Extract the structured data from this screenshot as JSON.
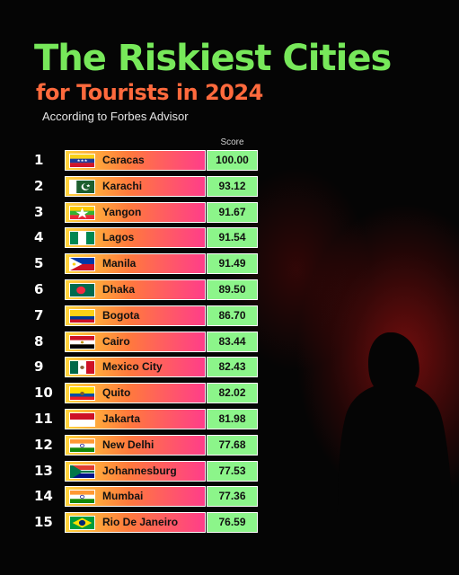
{
  "header": {
    "title": "The Riskiest Cities",
    "subtitle": "for Tourists in 2024",
    "source": "According to Forbes Advisor"
  },
  "colors": {
    "title": "#77e85a",
    "subtitle": "#ff6a3d",
    "score_cell": "#8cf58a",
    "city_gradient": [
      "#ffd43b",
      "#ff7a3c",
      "#ff3d8a"
    ]
  },
  "chart_data": {
    "type": "table",
    "title": "The Riskiest Cities for Tourists in 2024",
    "columns": [
      "",
      "",
      "Score"
    ],
    "score_label": "Score",
    "rows": [
      {
        "rank": "1",
        "city": "Caracas",
        "score": "100.00",
        "flag": "venezuela-flag"
      },
      {
        "rank": "2",
        "city": "Karachi",
        "score": "93.12",
        "flag": "pakistan-flag"
      },
      {
        "rank": "3",
        "city": "Yangon",
        "score": "91.67",
        "flag": "myanmar-flag"
      },
      {
        "rank": "4",
        "city": "Lagos",
        "score": "91.54",
        "flag": "nigeria-flag"
      },
      {
        "rank": "5",
        "city": "Manila",
        "score": "91.49",
        "flag": "philippines-flag"
      },
      {
        "rank": "6",
        "city": "Dhaka",
        "score": "89.50",
        "flag": "bangladesh-flag"
      },
      {
        "rank": "7",
        "city": "Bogota",
        "score": "86.70",
        "flag": "colombia-flag"
      },
      {
        "rank": "8",
        "city": "Cairo",
        "score": "83.44",
        "flag": "egypt-flag"
      },
      {
        "rank": "9",
        "city": "Mexico City",
        "score": "82.43",
        "flag": "mexico-flag"
      },
      {
        "rank": "10",
        "city": "Quito",
        "score": "82.02",
        "flag": "ecuador-flag"
      },
      {
        "rank": "11",
        "city": "Jakarta",
        "score": "81.98",
        "flag": "indonesia-flag"
      },
      {
        "rank": "12",
        "city": "New Delhi",
        "score": "77.68",
        "flag": "india-flag"
      },
      {
        "rank": "13",
        "city": "Johannesburg",
        "score": "77.53",
        "flag": "south-africa-flag"
      },
      {
        "rank": "14",
        "city": "Mumbai",
        "score": "77.36",
        "flag": "india-flag"
      },
      {
        "rank": "15",
        "city": "Rio De Janeiro",
        "score": "76.59",
        "flag": "brazil-flag"
      }
    ]
  }
}
